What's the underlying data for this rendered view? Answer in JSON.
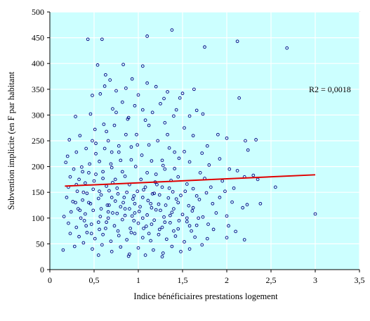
{
  "chart_data": {
    "type": "scatter",
    "title": "",
    "xlabel": "Indice bénéficiaires prestations logement",
    "ylabel": "Subvention implicite (en F par habitant",
    "xlim": [
      0,
      3.5
    ],
    "ylim": [
      0,
      500
    ],
    "x_ticks": [
      0,
      0.5,
      1,
      1.5,
      2,
      2.5,
      3,
      3.5
    ],
    "x_tick_labels": [
      "0",
      "0,5",
      "1",
      "1,5",
      "2",
      "2,5",
      "3",
      "3,5"
    ],
    "y_ticks": [
      0,
      50,
      100,
      150,
      200,
      250,
      300,
      350,
      400,
      450,
      500
    ],
    "y_tick_labels": [
      "0",
      "50",
      "100",
      "150",
      "200",
      "250",
      "300",
      "350",
      "400",
      "450",
      "500"
    ],
    "grid": "both",
    "plot_background": "#ccffff",
    "marker_color": "#000080",
    "trend_color": "#e00000",
    "trendline": {
      "x": [
        0.17,
        3.0
      ],
      "y": [
        162,
        184
      ]
    },
    "annotation": "R2 = 0,0018",
    "series": [
      {
        "points": [
          [
            0.43,
            447
          ],
          [
            0.59,
            447
          ],
          [
            1.1,
            453
          ],
          [
            1.38,
            465
          ],
          [
            1.75,
            432
          ],
          [
            2.12,
            443
          ],
          [
            2.68,
            430
          ],
          [
            0.54,
            397
          ],
          [
            0.83,
            398
          ],
          [
            1.05,
            395
          ],
          [
            0.63,
            378
          ],
          [
            0.68,
            368
          ],
          [
            0.93,
            370
          ],
          [
            1.1,
            362
          ],
          [
            0.62,
            356
          ],
          [
            0.86,
            352
          ],
          [
            1.2,
            355
          ],
          [
            1.33,
            345
          ],
          [
            1.5,
            342
          ],
          [
            1.63,
            350
          ],
          [
            2.14,
            333
          ],
          [
            0.48,
            338
          ],
          [
            0.57,
            341
          ],
          [
            0.75,
            347
          ],
          [
            1.0,
            339
          ],
          [
            1.47,
            333
          ],
          [
            0.29,
            297
          ],
          [
            0.46,
            302
          ],
          [
            0.71,
            312
          ],
          [
            0.96,
            318
          ],
          [
            1.25,
            322
          ],
          [
            1.43,
            310
          ],
          [
            1.66,
            309
          ],
          [
            0.22,
            252
          ],
          [
            0.34,
            260
          ],
          [
            0.51,
            272
          ],
          [
            0.61,
            282
          ],
          [
            0.88,
            292
          ],
          [
            1.08,
            290
          ],
          [
            1.3,
            285
          ],
          [
            1.58,
            298
          ],
          [
            1.73,
            302
          ],
          [
            1.9,
            262
          ],
          [
            2.0,
            255
          ],
          [
            2.21,
            250
          ],
          [
            2.33,
            252
          ],
          [
            0.2,
            220
          ],
          [
            0.3,
            228
          ],
          [
            0.41,
            235
          ],
          [
            0.52,
            245
          ],
          [
            0.66,
            250
          ],
          [
            0.78,
            240
          ],
          [
            0.92,
            238
          ],
          [
            1.12,
            242
          ],
          [
            1.35,
            236
          ],
          [
            1.52,
            229
          ],
          [
            1.72,
            226
          ],
          [
            1.92,
            215
          ],
          [
            2.24,
            232
          ],
          [
            0.18,
            208
          ],
          [
            0.27,
            195
          ],
          [
            0.36,
            199
          ],
          [
            0.44,
            188
          ],
          [
            0.56,
            210
          ],
          [
            0.69,
            205
          ],
          [
            0.8,
            212
          ],
          [
            0.97,
            200
          ],
          [
            1.15,
            211
          ],
          [
            1.28,
            202
          ],
          [
            1.41,
            196
          ],
          [
            1.58,
            209
          ],
          [
            1.8,
            203
          ],
          [
            2.03,
            195
          ],
          [
            2.12,
            192
          ],
          [
            2.3,
            183
          ],
          [
            0.23,
            180
          ],
          [
            0.33,
            175
          ],
          [
            0.4,
            168
          ],
          [
            0.5,
            172
          ],
          [
            0.6,
            177
          ],
          [
            0.71,
            169
          ],
          [
            0.85,
            181
          ],
          [
            1.03,
            175
          ],
          [
            1.19,
            170
          ],
          [
            1.37,
            173
          ],
          [
            1.55,
            166
          ],
          [
            1.75,
            177
          ],
          [
            1.95,
            172
          ],
          [
            2.2,
            180
          ],
          [
            2.35,
            175
          ],
          [
            0.21,
            160
          ],
          [
            0.31,
            152
          ],
          [
            0.42,
            148
          ],
          [
            0.49,
            156
          ],
          [
            0.58,
            145
          ],
          [
            0.67,
            153
          ],
          [
            0.76,
            158
          ],
          [
            0.87,
            150
          ],
          [
            0.95,
            143
          ],
          [
            1.06,
            155
          ],
          [
            1.16,
            147
          ],
          [
            1.27,
            160
          ],
          [
            1.39,
            151
          ],
          [
            1.48,
            144
          ],
          [
            1.62,
            157
          ],
          [
            1.77,
            149
          ],
          [
            1.98,
            152
          ],
          [
            2.08,
            158
          ],
          [
            2.55,
            160
          ],
          [
            0.19,
            140
          ],
          [
            0.26,
            132
          ],
          [
            0.37,
            135
          ],
          [
            0.46,
            128
          ],
          [
            0.55,
            138
          ],
          [
            0.65,
            125
          ],
          [
            0.74,
            133
          ],
          [
            0.83,
            130
          ],
          [
            0.94,
            137
          ],
          [
            1.02,
            122
          ],
          [
            1.11,
            134
          ],
          [
            1.23,
            127
          ],
          [
            1.34,
            139
          ],
          [
            1.45,
            130
          ],
          [
            1.57,
            124
          ],
          [
            1.69,
            136
          ],
          [
            1.84,
            128
          ],
          [
            2.06,
            131
          ],
          [
            2.23,
            126
          ],
          [
            2.38,
            128
          ],
          [
            0.16,
            103
          ],
          [
            0.24,
            112
          ],
          [
            0.32,
            118
          ],
          [
            0.4,
            108
          ],
          [
            0.49,
            115
          ],
          [
            0.57,
            103
          ],
          [
            0.66,
            112
          ],
          [
            0.76,
            109
          ],
          [
            0.85,
            118
          ],
          [
            0.93,
            104
          ],
          [
            1.01,
            113
          ],
          [
            1.1,
            106
          ],
          [
            1.2,
            116
          ],
          [
            1.29,
            102
          ],
          [
            1.38,
            111
          ],
          [
            1.5,
            107
          ],
          [
            1.61,
            114
          ],
          [
            1.73,
            102
          ],
          [
            1.88,
            110
          ],
          [
            2.0,
            104
          ],
          [
            2.18,
            120
          ],
          [
            3.0,
            108
          ],
          [
            0.21,
            90
          ],
          [
            0.3,
            82
          ],
          [
            0.39,
            95
          ],
          [
            0.47,
            88
          ],
          [
            0.56,
            78
          ],
          [
            0.64,
            92
          ],
          [
            0.73,
            85
          ],
          [
            0.82,
            97
          ],
          [
            0.91,
            80
          ],
          [
            1.0,
            90
          ],
          [
            1.09,
            84
          ],
          [
            1.18,
            96
          ],
          [
            1.27,
            82
          ],
          [
            1.36,
            91
          ],
          [
            1.45,
            79
          ],
          [
            1.55,
            93
          ],
          [
            1.66,
            86
          ],
          [
            1.79,
            88
          ],
          [
            2.02,
            85
          ],
          [
            2.1,
            74
          ],
          [
            0.23,
            70
          ],
          [
            0.33,
            64
          ],
          [
            0.42,
            72
          ],
          [
            0.51,
            60
          ],
          [
            0.6,
            68
          ],
          [
            0.69,
            55
          ],
          [
            0.78,
            66
          ],
          [
            0.87,
            58
          ],
          [
            0.96,
            70
          ],
          [
            1.05,
            62
          ],
          [
            1.14,
            56
          ],
          [
            1.23,
            68
          ],
          [
            1.32,
            59
          ],
          [
            1.42,
            65
          ],
          [
            1.52,
            54
          ],
          [
            1.64,
            63
          ],
          [
            1.78,
            60
          ],
          [
            2.0,
            62
          ],
          [
            2.2,
            58
          ],
          [
            0.15,
            38
          ],
          [
            0.28,
            45
          ],
          [
            0.38,
            52
          ],
          [
            0.48,
            40
          ],
          [
            0.59,
            48
          ],
          [
            0.7,
            35
          ],
          [
            0.8,
            44
          ],
          [
            0.9,
            30
          ],
          [
            1.0,
            42
          ],
          [
            1.08,
            28
          ],
          [
            1.17,
            38
          ],
          [
            1.28,
            32
          ],
          [
            1.38,
            45
          ],
          [
            1.48,
            35
          ],
          [
            1.58,
            40
          ],
          [
            1.72,
            48
          ],
          [
            0.55,
            28
          ],
          [
            0.89,
            26
          ],
          [
            1.27,
            25
          ],
          [
            0.78,
            228
          ],
          [
            0.86,
            262
          ],
          [
            1.04,
            222
          ],
          [
            1.22,
            250
          ],
          [
            1.46,
            216
          ],
          [
            1.12,
            280
          ],
          [
            0.98,
            262
          ],
          [
            0.7,
            198
          ],
          [
            0.82,
            190
          ],
          [
            1.2,
            185
          ],
          [
            1.3,
            195
          ],
          [
            1.45,
            180
          ],
          [
            0.64,
            162
          ],
          [
            0.9,
            165
          ],
          [
            1.1,
            188
          ],
          [
            1.24,
            145
          ],
          [
            1.35,
            158
          ],
          [
            0.7,
            140
          ],
          [
            0.8,
            122
          ],
          [
            0.9,
            118
          ],
          [
            1.05,
            140
          ],
          [
            1.15,
            120
          ],
          [
            1.25,
            115
          ],
          [
            1.4,
            118
          ],
          [
            1.55,
            100
          ],
          [
            0.95,
            95
          ],
          [
            1.05,
            100
          ],
          [
            1.15,
            88
          ],
          [
            1.3,
            92
          ],
          [
            1.6,
            75
          ],
          [
            1.4,
            75
          ],
          [
            1.12,
            70
          ],
          [
            0.92,
            72
          ],
          [
            0.85,
            105
          ],
          [
            0.96,
            128
          ],
          [
            1.08,
            160
          ],
          [
            1.18,
            148
          ],
          [
            0.74,
            175
          ],
          [
            0.6,
            190
          ],
          [
            0.52,
            225
          ],
          [
            0.45,
            205
          ],
          [
            0.38,
            150
          ],
          [
            0.34,
            115
          ],
          [
            0.44,
            130
          ],
          [
            0.58,
            118
          ],
          [
            0.66,
            100
          ],
          [
            0.55,
            92
          ],
          [
            0.35,
            100
          ],
          [
            1.7,
            188
          ],
          [
            1.82,
            160
          ],
          [
            1.62,
            120
          ],
          [
            1.92,
            140
          ],
          [
            1.68,
            100
          ],
          [
            1.85,
            78
          ],
          [
            0.75,
            305
          ],
          [
            0.82,
            325
          ],
          [
            1.16,
            305
          ],
          [
            1.29,
            332
          ],
          [
            0.52,
            185
          ],
          [
            0.62,
            235
          ],
          [
            0.73,
            280
          ],
          [
            0.99,
            242
          ],
          [
            1.33,
            262
          ],
          [
            1.52,
            275
          ],
          [
            1.41,
            228
          ],
          [
            1.27,
            212
          ],
          [
            0.92,
            213
          ],
          [
            0.7,
            228
          ],
          [
            0.56,
            152
          ],
          [
            0.77,
            147
          ],
          [
            0.99,
            152
          ],
          [
            1.21,
            165
          ],
          [
            1.31,
            125
          ],
          [
            1.43,
            137
          ],
          [
            1.53,
            152
          ],
          [
            1.66,
            143
          ],
          [
            0.67,
            125
          ],
          [
            0.84,
            140
          ],
          [
            1.14,
            128
          ],
          [
            1.36,
            105
          ],
          [
            1.46,
            95
          ],
          [
            1.58,
            85
          ],
          [
            0.71,
            110
          ],
          [
            0.96,
            110
          ],
          [
            1.06,
            80
          ],
          [
            1.24,
            78
          ],
          [
            0.63,
            80
          ],
          [
            0.77,
            75
          ],
          [
            0.47,
            70
          ],
          [
            0.41,
            85
          ],
          [
            0.29,
            130
          ],
          [
            0.3,
            165
          ],
          [
            0.37,
            190
          ],
          [
            0.48,
            250
          ],
          [
            0.64,
            268
          ],
          [
            0.89,
            295
          ],
          [
            1.05,
            310
          ],
          [
            1.4,
            298
          ],
          [
            1.62,
            260
          ],
          [
            1.78,
            240
          ]
        ]
      }
    ]
  }
}
